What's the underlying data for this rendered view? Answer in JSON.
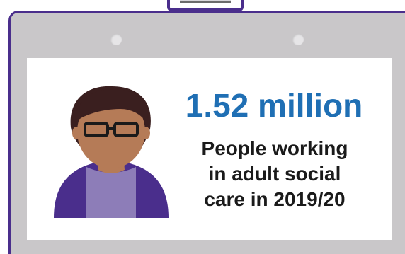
{
  "badge": {
    "headline": "1.52 million",
    "description_lines": [
      "People working",
      "in adult social",
      "care in 2019/20"
    ]
  },
  "icons": {
    "person": "person-with-glasses-icon",
    "lanyard_clip": "badge-clip-icon"
  },
  "colors": {
    "badge_border": "#4a2e8c",
    "badge_fill": "#c9c7c9",
    "headline": "#1f6fb4",
    "text": "#1a1a1a",
    "skin": "#b57b57",
    "hair": "#3a1f1f",
    "shirt": "#8d7db8",
    "jacket": "#4a2e8c"
  }
}
